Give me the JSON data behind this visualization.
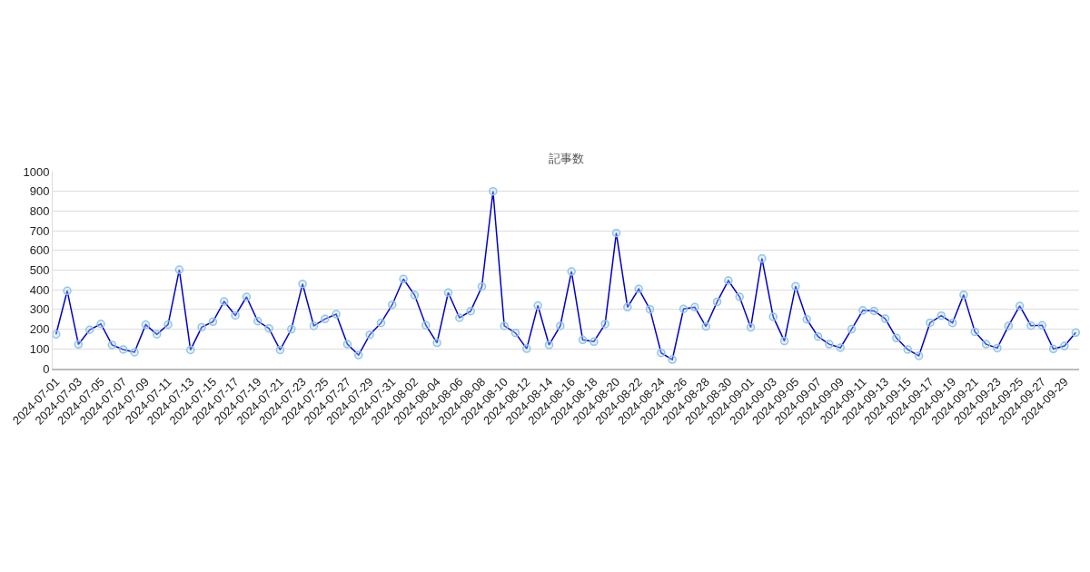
{
  "chart_data": {
    "type": "line",
    "title": "記事数",
    "categories": [
      "2024-07-01",
      null,
      "2024-07-03",
      null,
      "2024-07-05",
      null,
      "2024-07-07",
      null,
      "2024-07-09",
      null,
      "2024-07-11",
      null,
      "2024-07-13",
      null,
      "2024-07-15",
      null,
      "2024-07-17",
      null,
      "2024-07-19",
      null,
      "2024-07-21",
      null,
      "2024-07-23",
      null,
      "2024-07-25",
      null,
      "2024-07-27",
      null,
      "2024-07-29",
      null,
      "2024-07-31",
      null,
      "2024-08-02",
      null,
      "2024-08-04",
      null,
      "2024-08-06",
      null,
      "2024-08-08",
      null,
      "2024-08-10",
      null,
      "2024-08-12",
      null,
      "2024-08-14",
      null,
      "2024-08-16",
      null,
      "2024-08-18",
      null,
      "2024-08-20",
      null,
      "2024-08-22",
      null,
      "2024-08-24",
      null,
      "2024-08-26",
      null,
      "2024-08-28",
      null,
      "2024-08-30",
      null,
      "2024-09-01",
      null,
      "2024-09-03",
      null,
      "2024-09-05",
      null,
      "2024-09-07",
      null,
      "2024-09-09",
      null,
      "2024-09-11",
      null,
      "2024-09-13",
      null,
      "2024-09-15",
      null,
      "2024-09-17",
      null,
      "2024-09-19",
      null,
      "2024-09-21",
      null,
      "2024-09-23",
      null,
      "2024-09-25",
      null,
      "2024-09-27",
      null,
      "2024-09-29",
      null
    ],
    "series": [
      {
        "color": "#0000cc",
        "values": [
          174,
          395,
          123,
          197,
          227,
          120,
          97,
          83,
          223,
          174,
          224,
          502,
          95,
          210,
          238,
          341,
          270,
          364,
          241,
          204,
          95,
          200,
          430,
          217,
          252,
          276,
          124,
          69,
          172,
          232,
          324,
          455,
          373,
          220,
          131,
          386,
          258,
          292,
          416,
          900,
          217,
          181,
          101,
          320,
          120,
          217,
          493,
          146,
          137,
          226,
          688,
          312,
          404,
          301,
          80,
          46,
          303,
          312,
          214,
          339,
          447,
          364,
          209,
          559,
          263,
          140,
          418,
          250,
          163,
          124,
          106,
          200,
          296,
          293,
          253,
          155,
          97,
          65,
          233,
          269,
          232,
          375,
          187,
          124,
          104,
          217,
          318,
          218,
          220,
          100,
          115,
          183
        ]
      }
    ],
    "ylim": [
      0,
      1000
    ],
    "yticks": [
      0,
      100,
      200,
      300,
      400,
      500,
      600,
      700,
      800,
      900,
      1000
    ],
    "grid": "y",
    "legend": false,
    "marker": "circle",
    "line_style": "solid"
  }
}
